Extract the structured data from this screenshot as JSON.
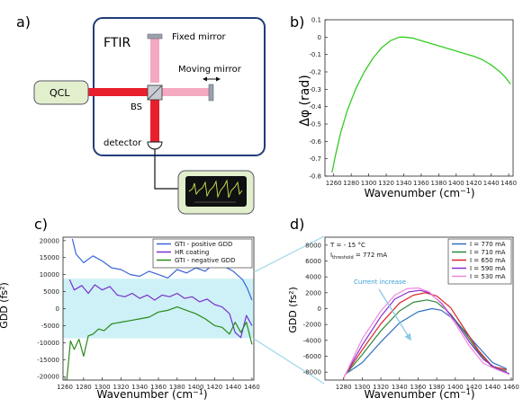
{
  "panel_labels": {
    "a": "a)",
    "b": "b)",
    "c": "c)",
    "d": "d)"
  },
  "colors": {
    "green": "#33cc22",
    "beam_red": "#e8202e",
    "beam_pink": "#f4a9c0",
    "frame_blue": "#1f3d7a",
    "box_fill": "#e2efcc",
    "shade": "#cdf1f6",
    "gti_pos": "#3a64d8",
    "hr": "#7a2fd0",
    "gti_neg": "#2a8a1a"
  },
  "setup": {
    "ftir_label": "FTIR",
    "fixed_mirror": "Fixed mirror",
    "moving_mirror": "Moving mirror",
    "qcl": "QCL",
    "bs": "BS",
    "detector": "detector"
  },
  "chart_data": [
    {
      "id": "b",
      "type": "line",
      "xlabel": "Wavenumber (cm",
      "xlabel_sup": "−1",
      "xlabel_end": ")",
      "ylabel": "Δφ (rad)",
      "xlim": [
        1250,
        1465
      ],
      "ylim": [
        -0.8,
        0.1
      ],
      "xticks": [
        1260,
        1280,
        1300,
        1320,
        1340,
        1360,
        1380,
        1400,
        1420,
        1440,
        1460
      ],
      "yticks": [
        0.1,
        0,
        -0.1,
        -0.2,
        -0.3,
        -0.4,
        -0.5,
        -0.6,
        -0.7,
        -0.8
      ],
      "ytick_labels": [
        "0.1",
        "0",
        "-0.1",
        "-0.2",
        "-0.3",
        "-0.4",
        "-0.5",
        "-0.6",
        "-0.7",
        "-0.8"
      ],
      "series": [
        {
          "color": "#33cc22",
          "x": [
            1258,
            1262,
            1268,
            1275,
            1285,
            1295,
            1305,
            1315,
            1325,
            1335,
            1340,
            1350,
            1360,
            1370,
            1380,
            1390,
            1400,
            1410,
            1420,
            1430,
            1440,
            1450,
            1456,
            1462
          ],
          "y": [
            -0.78,
            -0.68,
            -0.55,
            -0.43,
            -0.3,
            -0.2,
            -0.12,
            -0.06,
            -0.02,
            0.0,
            0.0,
            -0.005,
            -0.02,
            -0.035,
            -0.05,
            -0.065,
            -0.08,
            -0.095,
            -0.11,
            -0.13,
            -0.16,
            -0.2,
            -0.23,
            -0.27
          ]
        }
      ]
    },
    {
      "id": "c",
      "type": "line",
      "xlabel": "Wavenumber (cm",
      "xlabel_sup": "−1",
      "xlabel_end": ")",
      "ylabel": "GDD (fs²)",
      "xlim": [
        1258,
        1462
      ],
      "ylim": [
        -21000,
        21000
      ],
      "xticks": [
        1260,
        1280,
        1300,
        1320,
        1340,
        1360,
        1380,
        1400,
        1420,
        1440,
        1460
      ],
      "yticks": [
        20000,
        15000,
        10000,
        5000,
        0,
        -5000,
        -10000,
        -15000,
        -20000
      ],
      "ytick_labels": [
        "20000",
        "15000",
        "10000",
        "5000",
        "0",
        "-5000",
        "-10000",
        "-15000",
        "-20000"
      ],
      "shade_range": [
        -8700,
        8800
      ],
      "legend": [
        "GTI - positive GDD",
        "HR coating",
        "GTI - negative GDD"
      ],
      "series": [
        {
          "name": "GTI - positive GDD",
          "color": "#3a64d8",
          "x": [
            1268,
            1272,
            1280,
            1290,
            1300,
            1310,
            1320,
            1330,
            1340,
            1350,
            1360,
            1370,
            1380,
            1390,
            1400,
            1410,
            1420,
            1430,
            1440,
            1450,
            1455,
            1460
          ],
          "y": [
            20500,
            16000,
            13500,
            15500,
            14000,
            12000,
            11500,
            10000,
            9500,
            11000,
            10000,
            9000,
            11500,
            10500,
            12000,
            11000,
            13500,
            12500,
            11000,
            8500,
            6000,
            2500
          ]
        },
        {
          "name": "HR coating",
          "color": "#7a2fd0",
          "x": [
            1265,
            1270,
            1278,
            1285,
            1292,
            1300,
            1308,
            1316,
            1324,
            1332,
            1340,
            1348,
            1356,
            1364,
            1372,
            1380,
            1388,
            1396,
            1404,
            1412,
            1420,
            1428,
            1436,
            1442,
            1448,
            1454,
            1460
          ],
          "y": [
            8500,
            5500,
            6800,
            4500,
            7000,
            5500,
            6500,
            4000,
            3500,
            4500,
            3000,
            4000,
            2500,
            4000,
            3500,
            4500,
            3000,
            3500,
            2000,
            2800,
            1200,
            500,
            -1500,
            -7000,
            -8500,
            -2000,
            -5000
          ]
        },
        {
          "name": "GTI - negative GDD",
          "color": "#2a8a1a",
          "x": [
            1262,
            1266,
            1270,
            1275,
            1280,
            1285,
            1290,
            1296,
            1302,
            1310,
            1320,
            1330,
            1340,
            1350,
            1360,
            1370,
            1380,
            1390,
            1400,
            1410,
            1420,
            1428,
            1436,
            1442,
            1448,
            1454,
            1460
          ],
          "y": [
            -21000,
            -9500,
            -12000,
            -9000,
            -14000,
            -8000,
            -7500,
            -6000,
            -6500,
            -4500,
            -4000,
            -3500,
            -3000,
            -2500,
            -1000,
            -500,
            500,
            -500,
            -1500,
            -3000,
            -5000,
            -5500,
            -7500,
            -4000,
            -7000,
            -4000,
            -10500
          ]
        }
      ]
    },
    {
      "id": "d",
      "type": "line",
      "xlabel": "Wavenumber (cm",
      "xlabel_sup": "−1",
      "xlabel_end": ")",
      "ylabel": "GDD (fs²)",
      "xlim": [
        1260,
        1462
      ],
      "ylim": [
        -9000,
        9000
      ],
      "xticks": [
        1280,
        1300,
        1320,
        1340,
        1360,
        1380,
        1400,
        1420,
        1440,
        1460
      ],
      "yticks": [
        8000,
        6000,
        4000,
        2000,
        0,
        -2000,
        -4000,
        -6000,
        -8000
      ],
      "ytick_labels": [
        "8000",
        "6000",
        "4000",
        "2000",
        "0",
        "-2000",
        "-4000",
        "-6000",
        "-8000"
      ],
      "annotation_temp": "T = - 15 °C",
      "annotation_ith_main": "I",
      "annotation_ith_sub": "threshold",
      "annotation_ith_val": " = 772 mA",
      "arrow_label": "Current increase",
      "legend": [
        "I = 770 mA",
        "I = 710 mA",
        "I = 650 mA",
        "I = 590 mA",
        "I = 530 mA"
      ],
      "series": [
        {
          "name": "I = 770 mA",
          "color": "#2f6fc0",
          "x": [
            1285,
            1300,
            1320,
            1340,
            1360,
            1375,
            1385,
            1400,
            1420,
            1440,
            1455
          ],
          "y": [
            -8000,
            -6800,
            -4200,
            -1800,
            -400,
            0,
            -200,
            -1500,
            -4200,
            -6800,
            -7600
          ]
        },
        {
          "name": "I = 710 mA",
          "color": "#2a8a3a",
          "x": [
            1283,
            1300,
            1320,
            1340,
            1355,
            1370,
            1380,
            1395,
            1410,
            1425,
            1440,
            1455
          ],
          "y": [
            -8200,
            -5800,
            -2800,
            -300,
            800,
            1100,
            800,
            -700,
            -3000,
            -5500,
            -7400,
            -7900
          ]
        },
        {
          "name": "I = 650 mA",
          "color": "#d8262a",
          "x": [
            1282,
            1300,
            1320,
            1340,
            1355,
            1368,
            1380,
            1395,
            1410,
            1425,
            1440,
            1455
          ],
          "y": [
            -8300,
            -5200,
            -1900,
            700,
            1700,
            2000,
            1600,
            100,
            -2600,
            -5300,
            -7300,
            -7700
          ]
        },
        {
          "name": "I = 590 mA",
          "color": "#8a2fd0",
          "x": [
            1281,
            1300,
            1320,
            1335,
            1350,
            1362,
            1372,
            1385,
            1400,
            1415,
            1430,
            1445,
            1458
          ],
          "y": [
            -8500,
            -4600,
            -1000,
            1200,
            2100,
            2300,
            2000,
            700,
            -1600,
            -4200,
            -6400,
            -7600,
            -8200
          ]
        },
        {
          "name": "I = 530 mA",
          "color": "#ee88dd",
          "x": [
            1280,
            1300,
            1320,
            1335,
            1348,
            1360,
            1372,
            1385,
            1400,
            1415,
            1430,
            1445,
            1458
          ],
          "y": [
            -8800,
            -3800,
            -300,
            1700,
            2500,
            2600,
            2100,
            600,
            -1900,
            -4700,
            -6900,
            -7700,
            -8300
          ]
        }
      ]
    }
  ]
}
